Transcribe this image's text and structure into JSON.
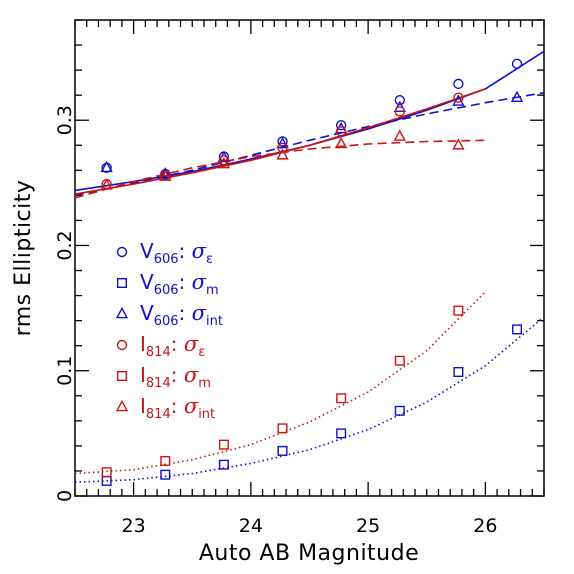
{
  "chart_data": {
    "type": "scatter",
    "xlabel": "Auto AB Magnitude",
    "ylabel": "rms Ellipticity",
    "xlim": [
      22.5,
      26.5
    ],
    "ylim": [
      0,
      0.38
    ],
    "x_ticks": [
      "23",
      "24",
      "25",
      "26"
    ],
    "y_ticks": [
      "0",
      "0.1",
      "0.2",
      "0.3"
    ],
    "grid": false,
    "legend_position": "left-middle",
    "colors": {
      "blue": "#1010cc",
      "red": "#cc1414"
    },
    "series": [
      {
        "name": "V606: σε",
        "legend": {
          "band": "V",
          "sub": "606",
          "sigma_sub": "ε"
        },
        "color": "#1010cc",
        "marker": "circle",
        "x": [
          22.77,
          23.27,
          23.77,
          24.27,
          24.77,
          25.27,
          25.77,
          26.27
        ],
        "y": [
          0.262,
          0.257,
          0.271,
          0.283,
          0.296,
          0.316,
          0.329,
          0.345
        ],
        "fit": {
          "style": "solid",
          "x": [
            22.5,
            23.0,
            23.5,
            24.0,
            24.5,
            25.0,
            25.5,
            26.0,
            26.5
          ],
          "y": [
            0.244,
            0.251,
            0.259,
            0.269,
            0.28,
            0.293,
            0.308,
            0.325,
            0.355
          ]
        }
      },
      {
        "name": "V606: σm",
        "legend": {
          "band": "V",
          "sub": "606",
          "sigma_sub": "m"
        },
        "color": "#1010cc",
        "marker": "square",
        "x": [
          22.77,
          23.27,
          23.77,
          24.27,
          24.77,
          25.27,
          25.77,
          26.27
        ],
        "y": [
          0.012,
          0.017,
          0.025,
          0.036,
          0.05,
          0.068,
          0.099,
          0.133
        ],
        "fit": {
          "style": "dotted",
          "x": [
            22.5,
            23.0,
            23.5,
            24.0,
            24.5,
            25.0,
            25.5,
            26.0,
            26.5
          ],
          "y": [
            0.011,
            0.013,
            0.018,
            0.026,
            0.037,
            0.053,
            0.075,
            0.104,
            0.143
          ]
        }
      },
      {
        "name": "V606: σint",
        "legend": {
          "band": "V",
          "sub": "606",
          "sigma_sub": "int"
        },
        "color": "#1010cc",
        "marker": "triangle",
        "x": [
          22.77,
          23.27,
          23.77,
          24.27,
          24.77,
          25.27,
          25.77,
          26.27
        ],
        "y": [
          0.262,
          0.257,
          0.27,
          0.281,
          0.293,
          0.31,
          0.315,
          0.318
        ],
        "fit": {
          "style": "dashed",
          "x": [
            22.5,
            23.0,
            23.5,
            24.0,
            24.5,
            25.0,
            25.5,
            26.0,
            26.5
          ],
          "y": [
            0.24,
            0.25,
            0.26,
            0.272,
            0.284,
            0.295,
            0.305,
            0.314,
            0.322
          ]
        }
      },
      {
        "name": "I814: σε",
        "legend": {
          "band": "I",
          "sub": "814",
          "sigma_sub": "ε"
        },
        "color": "#cc1414",
        "marker": "circle",
        "x": [
          22.77,
          23.27,
          23.77,
          24.27,
          24.77,
          25.27,
          25.77
        ],
        "y": [
          0.249,
          0.256,
          0.268,
          0.278,
          0.291,
          0.307,
          0.318
        ],
        "fit": {
          "style": "solid",
          "x": [
            22.5,
            23.0,
            23.5,
            24.0,
            24.5,
            25.0,
            25.5,
            26.0
          ],
          "y": [
            0.241,
            0.249,
            0.258,
            0.268,
            0.28,
            0.294,
            0.309,
            0.325
          ]
        }
      },
      {
        "name": "I814: σm",
        "legend": {
          "band": "I",
          "sub": "814",
          "sigma_sub": "m"
        },
        "color": "#cc1414",
        "marker": "square",
        "x": [
          22.77,
          23.27,
          23.77,
          24.27,
          24.77,
          25.27,
          25.77
        ],
        "y": [
          0.019,
          0.028,
          0.041,
          0.054,
          0.078,
          0.108,
          0.148
        ],
        "fit": {
          "style": "dotted",
          "x": [
            22.5,
            23.0,
            23.5,
            24.0,
            24.5,
            25.0,
            25.5,
            26.0
          ],
          "y": [
            0.018,
            0.021,
            0.029,
            0.041,
            0.059,
            0.083,
            0.116,
            0.163
          ]
        }
      },
      {
        "name": "I814: σint",
        "legend": {
          "band": "I",
          "sub": "814",
          "sigma_sub": "int"
        },
        "color": "#cc1414",
        "marker": "triangle",
        "x": [
          22.77,
          23.27,
          23.77,
          24.27,
          24.77,
          25.27,
          25.77
        ],
        "y": [
          0.248,
          0.255,
          0.265,
          0.272,
          0.281,
          0.287,
          0.28
        ],
        "fit": {
          "style": "dashed",
          "x": [
            22.5,
            23.0,
            23.5,
            24.0,
            24.5,
            25.0,
            25.5,
            26.0
          ],
          "y": [
            0.238,
            0.251,
            0.262,
            0.271,
            0.277,
            0.281,
            0.283,
            0.284
          ]
        }
      }
    ]
  }
}
